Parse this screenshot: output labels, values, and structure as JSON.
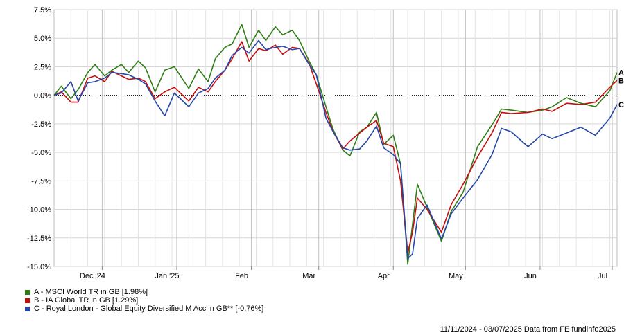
{
  "chart_data": {
    "type": "line",
    "xlabel": "",
    "ylabel": "",
    "ylim": [
      -15,
      7.5
    ],
    "y_ticks": [
      7.5,
      5.0,
      2.5,
      0.0,
      -2.5,
      -5.0,
      -7.5,
      -10.0,
      -12.5,
      -15.0
    ],
    "y_tick_labels": [
      "7.5%",
      "5.0%",
      "2.5%",
      "0.0%",
      "-2.5%",
      "-5.0%",
      "-7.5%",
      "-10.0%",
      "-12.5%",
      "-15.0%"
    ],
    "x_range": [
      "2024-11-11",
      "2025-07-03"
    ],
    "x_ticks": [
      {
        "date": "2024-12-01",
        "label": "Dec '24"
      },
      {
        "date": "2025-01-01",
        "label": "Jan '25"
      },
      {
        "date": "2025-02-01",
        "label": "Feb"
      },
      {
        "date": "2025-03-01",
        "label": "Mar"
      },
      {
        "date": "2025-04-01",
        "label": "Apr"
      },
      {
        "date": "2025-05-01",
        "label": "May"
      },
      {
        "date": "2025-06-01",
        "label": "Jun"
      },
      {
        "date": "2025-07-01",
        "label": "Jul"
      }
    ],
    "grid": true,
    "zero_line": true,
    "x": [
      "2024-11-11",
      "2024-11-14",
      "2024-11-18",
      "2024-11-21",
      "2024-11-25",
      "2024-11-28",
      "2024-12-02",
      "2024-12-05",
      "2024-12-09",
      "2024-12-12",
      "2024-12-16",
      "2024-12-19",
      "2024-12-23",
      "2024-12-27",
      "2024-12-31",
      "2025-01-06",
      "2025-01-10",
      "2025-01-14",
      "2025-01-17",
      "2025-01-21",
      "2025-01-24",
      "2025-01-28",
      "2025-01-31",
      "2025-02-04",
      "2025-02-07",
      "2025-02-11",
      "2025-02-14",
      "2025-02-18",
      "2025-02-21",
      "2025-02-25",
      "2025-02-28",
      "2025-03-04",
      "2025-03-07",
      "2025-03-11",
      "2025-03-14",
      "2025-03-18",
      "2025-03-21",
      "2025-03-25",
      "2025-03-28",
      "2025-04-01",
      "2025-04-04",
      "2025-04-07",
      "2025-04-09",
      "2025-04-11",
      "2025-04-15",
      "2025-04-21",
      "2025-04-25",
      "2025-04-30",
      "2025-05-06",
      "2025-05-12",
      "2025-05-16",
      "2025-05-20",
      "2025-05-27",
      "2025-06-02",
      "2025-06-06",
      "2025-06-12",
      "2025-06-18",
      "2025-06-24",
      "2025-06-30",
      "2025-07-03"
    ],
    "series": [
      {
        "name": "A",
        "color": "#2e7d16",
        "values": [
          0.0,
          0.8,
          -0.3,
          0.5,
          2.0,
          2.7,
          1.7,
          2.2,
          2.7,
          2.0,
          3.0,
          2.4,
          0.3,
          2.2,
          2.5,
          0.6,
          2.3,
          1.2,
          3.2,
          4.2,
          4.5,
          6.2,
          4.2,
          5.7,
          4.8,
          6.0,
          5.3,
          5.7,
          4.8,
          3.0,
          1.8,
          -1.0,
          -3.0,
          -4.8,
          -5.3,
          -3.2,
          -2.8,
          -1.5,
          -4.3,
          -3.5,
          -6.0,
          -14.8,
          -11.3,
          -7.8,
          -9.8,
          -12.8,
          -10.2,
          -8.5,
          -4.5,
          -2.6,
          -1.2,
          -1.3,
          -1.5,
          -1.3,
          -1.0,
          -0.2,
          -0.7,
          -1.0,
          0.4,
          2.0
        ]
      },
      {
        "name": "B",
        "color": "#c40e0e",
        "values": [
          0.0,
          0.3,
          -0.6,
          -0.6,
          1.5,
          1.7,
          1.2,
          2.1,
          1.7,
          1.4,
          1.5,
          1.2,
          -0.3,
          0.3,
          0.7,
          -0.5,
          0.7,
          0.3,
          1.2,
          2.2,
          3.2,
          4.7,
          3.0,
          4.1,
          3.9,
          4.4,
          3.6,
          4.2,
          4.1,
          2.8,
          1.0,
          -1.5,
          -3.2,
          -4.7,
          -4.0,
          -3.3,
          -2.8,
          -2.2,
          -4.2,
          -4.5,
          -7.5,
          -13.8,
          -12.0,
          -9.0,
          -10.0,
          -12.0,
          -9.6,
          -7.8,
          -5.4,
          -3.3,
          -1.5,
          -1.6,
          -1.5,
          -1.2,
          -1.4,
          -0.7,
          -0.8,
          -0.6,
          0.7,
          1.3
        ]
      },
      {
        "name": "C",
        "color": "#2346a8",
        "values": [
          0.0,
          0.2,
          1.2,
          -0.5,
          1.1,
          1.2,
          1.5,
          2.0,
          1.9,
          1.8,
          1.4,
          1.0,
          -0.5,
          -1.8,
          0.2,
          -1.0,
          0.2,
          0.6,
          1.5,
          2.2,
          3.5,
          4.2,
          3.7,
          4.8,
          4.0,
          4.2,
          4.3,
          4.0,
          4.1,
          2.7,
          1.8,
          -2.0,
          -3.2,
          -4.6,
          -4.8,
          -4.7,
          -4.0,
          -2.7,
          -4.6,
          -5.2,
          -6.0,
          -14.3,
          -13.9,
          -10.8,
          -9.6,
          -12.6,
          -10.4,
          -9.0,
          -7.4,
          -5.2,
          -2.9,
          -3.2,
          -4.5,
          -3.4,
          -3.8,
          -3.3,
          -2.8,
          -3.5,
          -2.0,
          -0.8
        ]
      }
    ],
    "end_labels": [
      "A",
      "B",
      "C"
    ],
    "legend": [
      {
        "label": "A - MSCI World TR in GB [1.98%]",
        "color": "#2e7d16"
      },
      {
        "label": "B - IA Global TR in GB [1.29%]",
        "color": "#c40e0e"
      },
      {
        "label": "C - Royal London - Global Equity Diversified M Acc in GB** [-0.76%]",
        "color": "#2346a8"
      }
    ],
    "legend_placement": "bottom-left"
  },
  "footer": {
    "range_text": "11/11/2024 - 03/07/2025",
    "source_text": "Data from FE fundinfo2025"
  }
}
